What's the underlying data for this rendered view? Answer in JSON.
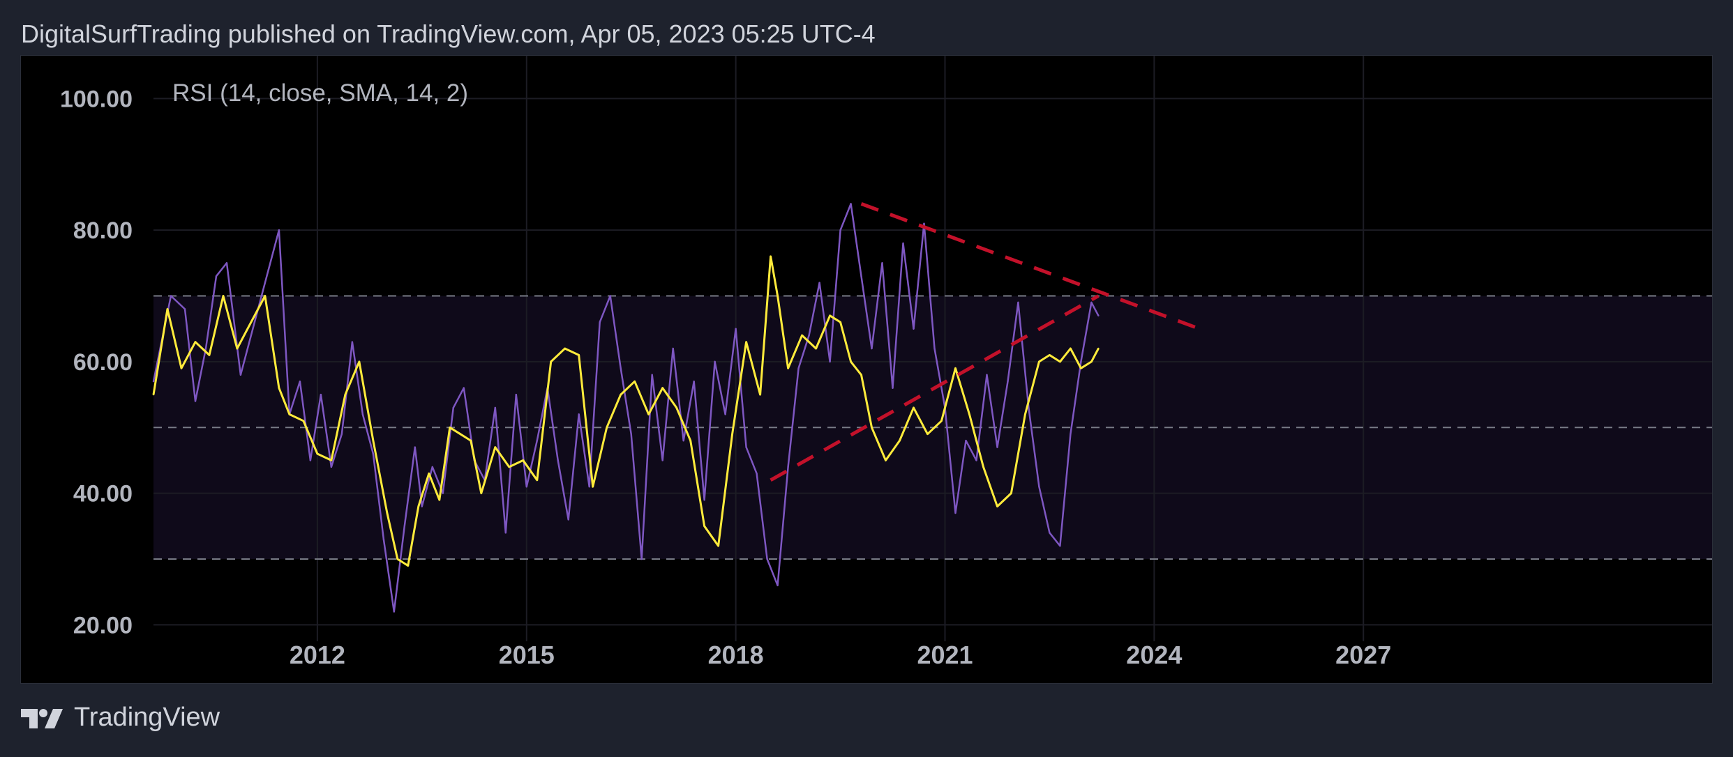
{
  "header": {
    "publisher_line": "DigitalSurfTrading published on TradingView.com, Apr 05, 2023 05:25 UTC-4"
  },
  "indicator": {
    "label": "RSI (14, close, SMA, 14, 2)"
  },
  "brand": {
    "name": "TradingView"
  },
  "colors": {
    "rsi_line": "#7e57c2",
    "sma_line": "#ffeb3b",
    "band_fill": "#0f0a1a",
    "trendline": "#c3112a",
    "background": "#000000",
    "frame": "#1e222d"
  },
  "chart_data": {
    "type": "line",
    "title": "RSI (14, close, SMA, 14, 2)",
    "xlabel": "",
    "ylabel": "",
    "xlim": [
      2009.65,
      2032.0
    ],
    "ylim": [
      17.5,
      106.5
    ],
    "y_ticks": [
      "20.00",
      "40.00",
      "60.00",
      "80.00",
      "100.00"
    ],
    "x_ticks": [
      "2012",
      "2015",
      "2018",
      "2021",
      "2024",
      "2027"
    ],
    "levels": [
      70,
      50,
      30
    ],
    "grid": true,
    "series": [
      {
        "role": "rsi",
        "x": [
          2009.65,
          2009.9,
          2010.1,
          2010.25,
          2010.4,
          2010.55,
          2010.7,
          2010.9,
          2011.1,
          2011.3,
          2011.45,
          2011.6,
          2011.75,
          2011.9,
          2012.05,
          2012.2,
          2012.35,
          2012.5,
          2012.65,
          2012.8,
          2012.95,
          2013.1,
          2013.25,
          2013.4,
          2013.5,
          2013.65,
          2013.8,
          2013.95,
          2014.1,
          2014.25,
          2014.4,
          2014.55,
          2014.7,
          2014.85,
          2015.0,
          2015.15,
          2015.3,
          2015.45,
          2015.6,
          2015.75,
          2015.9,
          2016.05,
          2016.2,
          2016.35,
          2016.5,
          2016.65,
          2016.8,
          2016.95,
          2017.1,
          2017.25,
          2017.4,
          2017.55,
          2017.7,
          2017.85,
          2018.0,
          2018.15,
          2018.3,
          2018.45,
          2018.6,
          2018.75,
          2018.9,
          2019.05,
          2019.2,
          2019.35,
          2019.5,
          2019.65,
          2019.8,
          2019.95,
          2020.1,
          2020.25,
          2020.4,
          2020.55,
          2020.7,
          2020.85,
          2021.0,
          2021.15,
          2021.3,
          2021.45,
          2021.6,
          2021.75,
          2021.9,
          2022.05,
          2022.2,
          2022.35,
          2022.5,
          2022.65,
          2022.8,
          2022.95,
          2023.1,
          2023.2
        ],
        "values": [
          57,
          70,
          68,
          54,
          62,
          73,
          75,
          58,
          66,
          74,
          80,
          52,
          57,
          45,
          55,
          44,
          49,
          63,
          52,
          46,
          33,
          22,
          35,
          47,
          38,
          44,
          40,
          53,
          56,
          45,
          42,
          53,
          34,
          55,
          41,
          48,
          56,
          45,
          36,
          52,
          41,
          66,
          70,
          59,
          49,
          30,
          58,
          45,
          62,
          48,
          57,
          39,
          60,
          52,
          65,
          47,
          43,
          30,
          26,
          44,
          59,
          64,
          72,
          60,
          80,
          84,
          73,
          62,
          75,
          56,
          78,
          65,
          81,
          62,
          53,
          37,
          48,
          45,
          58,
          47,
          57,
          69,
          53,
          41,
          34,
          32,
          49,
          60,
          69,
          67
        ]
      },
      {
        "role": "sma",
        "x": [
          2009.65,
          2009.85,
          2010.05,
          2010.25,
          2010.45,
          2010.65,
          2010.85,
          2011.05,
          2011.25,
          2011.45,
          2011.6,
          2011.8,
          2012.0,
          2012.2,
          2012.4,
          2012.6,
          2012.8,
          2013.0,
          2013.15,
          2013.3,
          2013.45,
          2013.6,
          2013.75,
          2013.9,
          2014.05,
          2014.2,
          2014.35,
          2014.55,
          2014.75,
          2014.95,
          2015.15,
          2015.35,
          2015.55,
          2015.75,
          2015.95,
          2016.15,
          2016.35,
          2016.55,
          2016.75,
          2016.95,
          2017.15,
          2017.35,
          2017.55,
          2017.75,
          2017.95,
          2018.15,
          2018.35,
          2018.5,
          2018.6,
          2018.75,
          2018.95,
          2019.15,
          2019.35,
          2019.5,
          2019.65,
          2019.8,
          2019.95,
          2020.15,
          2020.35,
          2020.55,
          2020.75,
          2020.95,
          2021.15,
          2021.35,
          2021.55,
          2021.75,
          2021.95,
          2022.15,
          2022.35,
          2022.5,
          2022.65,
          2022.8,
          2022.95,
          2023.1,
          2023.2
        ],
        "values": [
          55,
          68,
          59,
          63,
          61,
          70,
          62,
          66,
          70,
          56,
          52,
          51,
          46,
          45,
          55,
          60,
          48,
          37,
          30,
          29,
          38,
          43,
          39,
          50,
          49,
          48,
          40,
          47,
          44,
          45,
          42,
          60,
          62,
          61,
          41,
          50,
          55,
          57,
          52,
          56,
          53,
          48,
          35,
          32,
          49,
          63,
          55,
          76,
          70,
          59,
          64,
          62,
          67,
          66,
          60,
          58,
          50,
          45,
          48,
          53,
          49,
          51,
          59,
          52,
          44,
          38,
          40,
          52,
          60,
          61,
          60,
          62,
          59,
          60,
          62
        ]
      }
    ],
    "trendlines": [
      {
        "style": "dashed",
        "points": [
          [
            2019.8,
            84
          ],
          [
            2024.65,
            65
          ]
        ]
      },
      {
        "style": "dashed",
        "points": [
          [
            2018.5,
            42
          ],
          [
            2023.2,
            70
          ]
        ]
      }
    ]
  }
}
